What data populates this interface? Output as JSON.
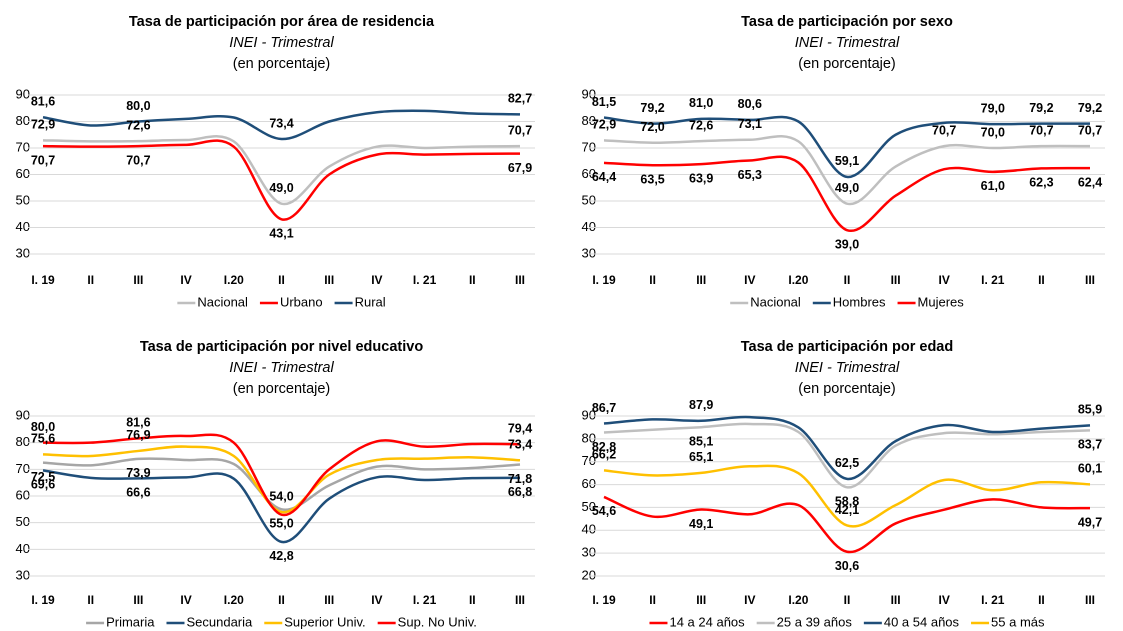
{
  "chart_data": [
    {
      "type": "line",
      "title": "Tasa de participación por área de residencia",
      "subtitle": "INEI - Trimestral",
      "unit": "(en porcentaje)",
      "categories": [
        "I. 19",
        "II",
        "III",
        "IV",
        "I.20",
        "II",
        "III",
        "IV",
        "I. 21",
        "II",
        "III"
      ],
      "ylim": [
        30,
        90
      ],
      "yticks": [
        30,
        40,
        50,
        60,
        70,
        80,
        90
      ],
      "grid": true,
      "series": [
        {
          "name": "Nacional",
          "color": "#bfbfbf",
          "values": [
            72.9,
            72.5,
            72.6,
            73.0,
            72.5,
            49.0,
            63.0,
            70.5,
            70.0,
            70.5,
            70.7
          ],
          "value_labels": [
            "72,9",
            null,
            "72,6",
            null,
            null,
            "49,0",
            null,
            null,
            null,
            null,
            "70,7"
          ]
        },
        {
          "name": "Urbano",
          "color": "#ff0000",
          "values": [
            70.7,
            70.5,
            70.7,
            71.2,
            70.5,
            43.1,
            60.0,
            67.5,
            67.5,
            67.8,
            67.9
          ],
          "value_labels": [
            "70,7",
            null,
            "70,7",
            null,
            null,
            "43,1",
            null,
            null,
            null,
            null,
            "67,9"
          ]
        },
        {
          "name": "Rural",
          "color": "#1f4e79",
          "values": [
            81.6,
            78.5,
            80.0,
            81.0,
            81.5,
            73.4,
            80.0,
            83.5,
            84.0,
            83.0,
            82.7
          ],
          "value_labels": [
            "81,6",
            null,
            "80,0",
            null,
            null,
            "73,4",
            null,
            null,
            null,
            null,
            "82,7"
          ]
        }
      ]
    },
    {
      "type": "line",
      "title": "Tasa de participación por sexo",
      "subtitle": "INEI - Trimestral",
      "unit": "(en porcentaje)",
      "categories": [
        "I. 19",
        "II",
        "III",
        "IV",
        "I.20",
        "II",
        "III",
        "IV",
        "I. 21",
        "II",
        "III"
      ],
      "ylim": [
        30,
        90
      ],
      "yticks": [
        30,
        40,
        50,
        60,
        70,
        80,
        90
      ],
      "grid": true,
      "series": [
        {
          "name": "Nacional",
          "color": "#bfbfbf",
          "values": [
            72.9,
            72.0,
            72.6,
            73.1,
            72.5,
            49.0,
            63.0,
            70.7,
            70.0,
            70.7,
            70.7
          ],
          "value_labels": [
            "72,9",
            "72,0",
            "72,6",
            "73,1",
            null,
            "49,0",
            null,
            "70,7",
            "70,0",
            "70,7",
            "70,7"
          ]
        },
        {
          "name": "Hombres",
          "color": "#1f4e79",
          "values": [
            81.5,
            79.2,
            81.0,
            80.6,
            80.0,
            59.1,
            75.0,
            79.5,
            79.0,
            79.2,
            79.2
          ],
          "value_labels": [
            "81,5",
            "79,2",
            "81,0",
            "80,6",
            null,
            "59,1",
            null,
            null,
            "79,0",
            "79,2",
            "79,2"
          ]
        },
        {
          "name": "Mujeres",
          "color": "#ff0000",
          "values": [
            64.4,
            63.5,
            63.9,
            65.3,
            64.5,
            39.0,
            52.0,
            62.0,
            61.0,
            62.3,
            62.4
          ],
          "value_labels": [
            "64,4",
            "63,5",
            "63,9",
            "65,3",
            null,
            "39,0",
            null,
            null,
            "61,0",
            "62,3",
            "62,4"
          ]
        }
      ]
    },
    {
      "type": "line",
      "title": "Tasa de participación por nivel educativo",
      "subtitle": "INEI - Trimestral",
      "unit": "(en porcentaje)",
      "categories": [
        "I. 19",
        "II",
        "III",
        "IV",
        "I.20",
        "II",
        "III",
        "IV",
        "I. 21",
        "II",
        "III"
      ],
      "ylim": [
        30,
        90
      ],
      "yticks": [
        30,
        40,
        50,
        60,
        70,
        80,
        90
      ],
      "grid": true,
      "series": [
        {
          "name": "Primaria",
          "color": "#a6a6a6",
          "values": [
            72.5,
            71.5,
            73.9,
            73.5,
            72.0,
            55.0,
            64.0,
            71.0,
            70.0,
            70.5,
            71.8
          ],
          "value_labels": [
            "72,5",
            null,
            "73,9",
            null,
            null,
            "55,0",
            null,
            null,
            null,
            null,
            "71,8"
          ]
        },
        {
          "name": "Secundaria",
          "color": "#1f4e79",
          "values": [
            69.6,
            66.8,
            66.6,
            67.0,
            66.5,
            42.8,
            59.0,
            67.0,
            66.0,
            66.7,
            66.8
          ],
          "value_labels": [
            "69,6",
            null,
            "66,6",
            null,
            null,
            "42,8",
            null,
            null,
            null,
            null,
            "66,8"
          ]
        },
        {
          "name": "Superior Univ.",
          "color": "#ffc000",
          "values": [
            75.6,
            75.0,
            76.9,
            78.5,
            75.0,
            54.0,
            68.0,
            73.5,
            74.0,
            74.5,
            73.4
          ],
          "value_labels": [
            "75,6",
            null,
            "76,9",
            null,
            null,
            "54,0",
            null,
            null,
            null,
            null,
            "73,4"
          ]
        },
        {
          "name": "Sup. No Univ.",
          "color": "#ff0000",
          "values": [
            80.0,
            80.0,
            81.6,
            82.5,
            80.0,
            53.0,
            70.0,
            80.5,
            78.5,
            79.5,
            79.4
          ],
          "value_labels": [
            "80,0",
            null,
            "81,6",
            null,
            null,
            null,
            null,
            null,
            null,
            null,
            "79,4"
          ]
        }
      ]
    },
    {
      "type": "line",
      "title": "Tasa de participación por edad",
      "subtitle": "INEI - Trimestral",
      "unit": "(en porcentaje)",
      "categories": [
        "I. 19",
        "II",
        "III",
        "IV",
        "I.20",
        "II",
        "III",
        "IV",
        "I. 21",
        "II",
        "III"
      ],
      "ylim": [
        20,
        90
      ],
      "yticks": [
        20,
        30,
        40,
        50,
        60,
        70,
        80,
        90
      ],
      "grid": true,
      "series": [
        {
          "name": "14 a 24 años",
          "color": "#ff0000",
          "values": [
            54.6,
            46.0,
            49.1,
            47.0,
            51.0,
            30.6,
            43.0,
            49.0,
            53.5,
            50.0,
            49.7
          ],
          "value_labels": [
            "54,6",
            null,
            "49,1",
            null,
            null,
            "30,6",
            null,
            null,
            null,
            null,
            "49,7"
          ]
        },
        {
          "name": "25 a 39 años",
          "color": "#bfbfbf",
          "values": [
            82.8,
            84.0,
            85.1,
            86.5,
            83.0,
            58.8,
            77.0,
            82.5,
            82.0,
            83.0,
            83.7
          ],
          "value_labels": [
            "82,8",
            null,
            "85,1",
            null,
            null,
            "58,8",
            null,
            null,
            null,
            null,
            "83,7"
          ]
        },
        {
          "name": "40 a 54 años",
          "color": "#1f4e79",
          "values": [
            86.7,
            88.5,
            87.9,
            89.5,
            85.0,
            62.5,
            79.0,
            86.0,
            83.0,
            84.5,
            85.9
          ],
          "value_labels": [
            "86,7",
            null,
            "87,9",
            null,
            null,
            "62,5",
            null,
            null,
            null,
            null,
            "85,9"
          ]
        },
        {
          "name": "55 a más",
          "color": "#ffc000",
          "values": [
            66.2,
            64.0,
            65.1,
            68.0,
            65.0,
            42.1,
            51.0,
            62.0,
            57.5,
            61.0,
            60.1
          ],
          "value_labels": [
            "66,2",
            null,
            "65,1",
            null,
            null,
            "42,1",
            null,
            null,
            null,
            null,
            "60,1"
          ]
        }
      ]
    }
  ]
}
